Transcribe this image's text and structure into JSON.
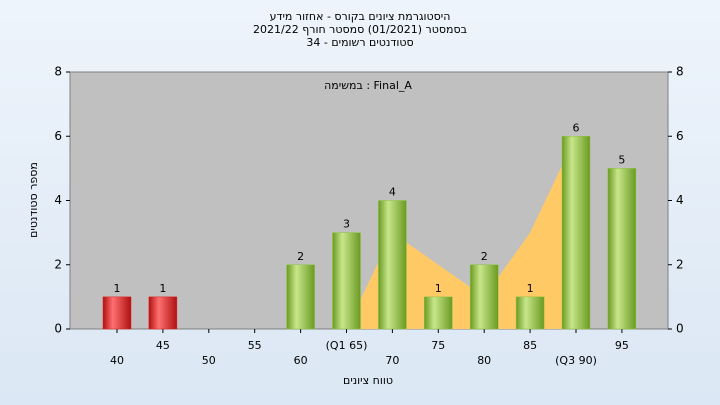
{
  "chart_data": {
    "type": "bar",
    "title": "היסטוגרמת ציונים בקורס - אחזור מידע",
    "subtitle": "בסמסטר  (01/2021)  סמסטר חורף 2021/22",
    "subtitle2": "סטודנטים רשומים - 34",
    "annotation": "במשימה : Final_A",
    "x_label": "טווח ציונים",
    "y_label": "מספר סטודנטים",
    "categories": [
      "40",
      "45",
      "50",
      "55",
      "60",
      "(Q1 65)",
      "70",
      "75",
      "80",
      "85",
      "(Q3 90)",
      "95"
    ],
    "values": [
      1,
      1,
      0,
      0,
      2,
      3,
      4,
      1,
      2,
      1,
      6,
      5
    ],
    "colors": [
      "#e02020",
      "#e02020",
      "#8cc43c",
      "#8cc43c",
      "#8cc43c",
      "#8cc43c",
      "#8cc43c",
      "#8cc43c",
      "#8cc43c",
      "#8cc43c",
      "#8cc43c",
      "#8cc43c"
    ],
    "area": {
      "color": "#ffc966",
      "values": [
        null,
        null,
        null,
        null,
        null,
        0,
        3,
        2,
        1,
        3,
        6,
        null
      ]
    },
    "ylim": [
      0,
      8
    ],
    "yticks": [
      0,
      2,
      4,
      6,
      8
    ],
    "y2lim": [
      0,
      8
    ],
    "y2ticks": [
      0,
      2,
      4,
      6,
      8
    ]
  }
}
